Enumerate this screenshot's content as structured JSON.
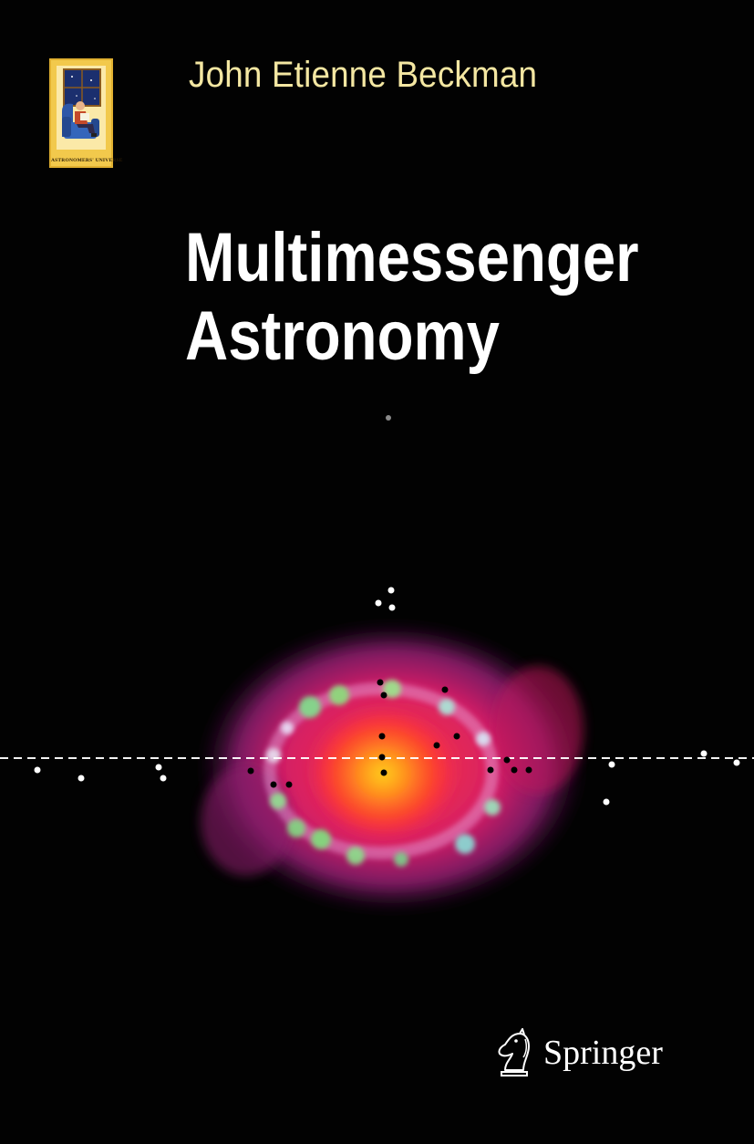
{
  "cover": {
    "series": {
      "badge_text": "ASTRONOMERS' UNIVERSE",
      "icon": "reader-in-armchair-by-window"
    },
    "author": "John Etienne Beckman",
    "title_lines": [
      "Multimessenger",
      "Astronomy"
    ],
    "publisher": {
      "name": "Springer",
      "icon": "knight-chess-piece-logo"
    },
    "colors": {
      "background": "#020202",
      "author": "#f4e7a2",
      "title": "#ffffff",
      "badge": "#f2c94c"
    }
  }
}
